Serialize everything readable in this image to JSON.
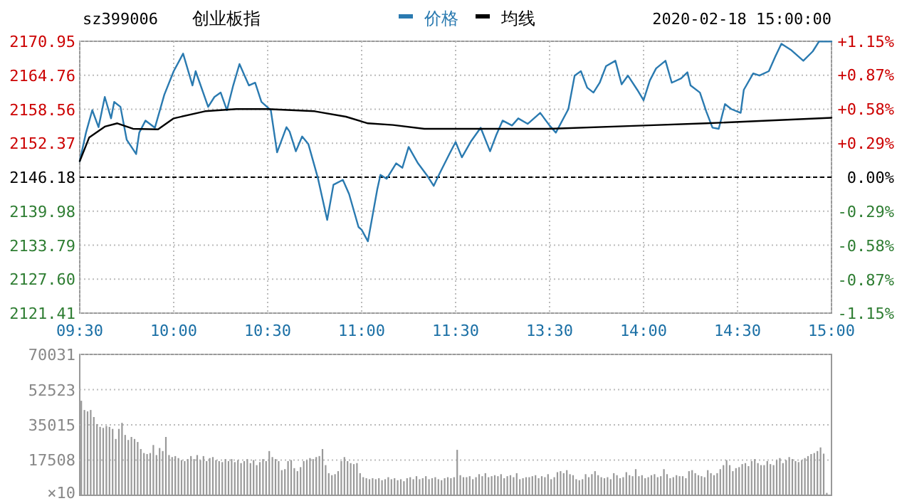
{
  "chart_data": [
    {
      "type": "line",
      "title": "创业板指",
      "subtitle": "sz399006",
      "annotations": [
        "2020-02-18 15:00:00"
      ],
      "legend": "top",
      "grid": true,
      "categories": [
        "09:30",
        null,
        null,
        null,
        null,
        null,
        null,
        null,
        null,
        null,
        null,
        null,
        null,
        null,
        null,
        null,
        null,
        null,
        null,
        null,
        null,
        null,
        null,
        null,
        null,
        null,
        null,
        null,
        null,
        null,
        "10:00",
        null,
        null,
        null,
        null,
        null,
        null,
        null,
        null,
        null,
        null,
        null,
        null,
        null,
        null,
        null,
        null,
        null,
        null,
        null,
        null,
        null,
        null,
        null,
        null,
        null,
        null,
        null,
        null,
        null,
        "10:30",
        null,
        null,
        null,
        null,
        null,
        null,
        null,
        null,
        null,
        null,
        null,
        null,
        null,
        null,
        null,
        null,
        null,
        null,
        null,
        null,
        null,
        null,
        null,
        null,
        null,
        null,
        null,
        null,
        null,
        "11:00",
        null,
        null,
        null,
        null,
        null,
        null,
        null,
        null,
        null,
        null,
        null,
        null,
        null,
        null,
        null,
        null,
        null,
        null,
        null,
        null,
        null,
        null,
        null,
        null,
        null,
        null,
        null,
        null,
        null,
        "11:30",
        null,
        null,
        null,
        null,
        null,
        null,
        null,
        null,
        null,
        null,
        null,
        null,
        null,
        null,
        null,
        null,
        null,
        null,
        null,
        null,
        null,
        null,
        null,
        null,
        null,
        null,
        null,
        null,
        null,
        "13:30",
        null,
        null,
        null,
        null,
        null,
        null,
        null,
        null,
        null,
        null,
        null,
        null,
        null,
        null,
        null,
        null,
        null,
        null,
        null,
        null,
        null,
        null,
        null,
        null,
        null,
        null,
        null,
        null,
        null,
        "14:00",
        null,
        null,
        null,
        null,
        null,
        null,
        null,
        null,
        null,
        null,
        null,
        null,
        null,
        null,
        null,
        null,
        null,
        null,
        null,
        null,
        null,
        null,
        null,
        null,
        null,
        null,
        null,
        null,
        null,
        "14:30",
        null,
        null,
        null,
        null,
        null,
        null,
        null,
        null,
        null,
        null,
        null,
        null,
        null,
        null,
        null,
        null,
        null,
        null,
        null,
        null,
        null,
        null,
        null,
        null,
        null,
        null,
        null,
        null,
        null,
        "15:00"
      ],
      "ylim": [
        2121.41,
        2170.95
      ],
      "yticks": [
        2121.41,
        {
          "value": 2127.6,
          "label": "2127.60"
        },
        2133.79,
        2139.98,
        2146.18,
        2152.37,
        2158.56,
        2164.76,
        2170.95
      ],
      "y2lim": [
        -1.15,
        1.15
      ],
      "y2ticks": [
        {
          "value": -1.15,
          "label": "-1.15%"
        },
        {
          "value": -0.87,
          "label": "-0.87%"
        },
        {
          "value": -0.58,
          "label": "-0.58%"
        },
        {
          "value": -0.29,
          "label": "-0.29%"
        },
        {
          "value": 0,
          "label": "0.00%"
        },
        {
          "value": 0.29,
          "label": "+0.29%"
        },
        {
          "value": 0.58,
          "label": "+0.58%"
        },
        {
          "value": 0.87,
          "label": "+0.87%"
        },
        {
          "value": 1.15,
          "label": "+1.15%"
        }
      ],
      "ref_lines": [
        {
          "axis": "y",
          "value": 2146.18,
          "color": "#000000",
          "line_style": "dashed"
        }
      ],
      "series": [
        {
          "name": "价格",
          "color": "#2a7ab0",
          "values": [
            2149.1,
            null,
            2154.3,
            null,
            2158.4,
            null,
            2155.3,
            null,
            2160.8,
            null,
            2156.9,
            2159.9,
            null,
            2159.0,
            null,
            2153.0,
            null,
            null,
            2150.4,
            2154.3,
            null,
            2156.5,
            null,
            null,
            2155.2,
            null,
            null,
            2161.2,
            null,
            null,
            2165.5,
            null,
            null,
            2168.7,
            null,
            null,
            2162.9,
            2165.5,
            null,
            null,
            null,
            2159.0,
            null,
            2160.8,
            null,
            2161.6,
            null,
            2158.4,
            null,
            2162.9,
            null,
            2166.8,
            null,
            null,
            2162.9,
            null,
            2163.4,
            null,
            2159.9,
            null,
            null,
            2158.4,
            null,
            2150.7,
            null,
            null,
            2155.3,
            2154.5,
            null,
            2150.9,
            null,
            2153.6,
            null,
            2152.2,
            null,
            null,
            2146.1,
            null,
            null,
            2138.4,
            null,
            2144.8,
            null,
            null,
            2145.7,
            null,
            2143.1,
            null,
            null,
            2137.1,
            2136.6,
            null,
            2134.5,
            null,
            null,
            2144.0,
            2146.6,
            null,
            2145.9,
            null,
            null,
            2148.7,
            null,
            2147.9,
            null,
            2151.7,
            null,
            null,
            2148.7,
            null,
            null,
            2146.4,
            null,
            2144.6,
            null,
            2147.0,
            null,
            null,
            2150.4,
            null,
            2152.6,
            null,
            2149.8,
            null,
            null,
            2152.8,
            null,
            null,
            2155.2,
            null,
            null,
            2150.9,
            null,
            2153.9,
            null,
            2156.5,
            null,
            null,
            2155.6,
            null,
            2156.9,
            null,
            null,
            2155.9,
            null,
            null,
            null,
            2157.9,
            null,
            null,
            2155.6,
            null,
            2154.3,
            null,
            null,
            null,
            2158.6,
            null,
            2164.7,
            null,
            2165.5,
            null,
            2162.5,
            null,
            2161.6,
            null,
            2163.4,
            null,
            2166.4,
            null,
            null,
            2167.4,
            null,
            2163.1,
            null,
            2164.7,
            null,
            null,
            2162.1,
            null,
            2160.2,
            null,
            2163.8,
            null,
            2166.0,
            null,
            null,
            2167.4,
            null,
            2163.4,
            null,
            null,
            2164.2,
            null,
            2165.3,
            2162.9,
            null,
            null,
            2161.6,
            null,
            2158.2,
            null,
            2155.2,
            null,
            2155.0,
            null,
            2159.5,
            null,
            2158.6,
            null,
            null,
            2157.9,
            2162.1,
            null,
            null,
            2165.1,
            null,
            2164.7,
            null,
            null,
            2165.5,
            null,
            2168.1,
            null,
            2170.5,
            null,
            null,
            2169.4,
            null,
            null,
            null,
            2167.4,
            null,
            null,
            2169.1,
            null,
            2170.9,
            null,
            null,
            null,
            2170.9
          ]
        },
        {
          "name": "均线",
          "color": "#000000",
          "values": [
            2149.1,
            null,
            null,
            2153.4,
            null,
            null,
            null,
            null,
            2155.4,
            null,
            null,
            null,
            2156.0,
            null,
            null,
            null,
            null,
            2155.0,
            null,
            null,
            null,
            null,
            null,
            null,
            null,
            2154.9,
            null,
            null,
            null,
            null,
            2156.9,
            null,
            null,
            null,
            null,
            null,
            null,
            null,
            null,
            null,
            2158.2,
            null,
            null,
            null,
            null,
            null,
            null,
            null,
            null,
            null,
            2158.6,
            null,
            null,
            null,
            null,
            null,
            null,
            null,
            null,
            null,
            2158.6,
            null,
            null,
            null,
            null,
            null,
            null,
            null,
            null,
            null,
            null,
            null,
            null,
            null,
            null,
            2158.2,
            null,
            null,
            null,
            null,
            null,
            null,
            null,
            null,
            null,
            2157.2,
            null,
            null,
            null,
            null,
            null,
            null,
            2156.0,
            null,
            null,
            null,
            null,
            null,
            null,
            null,
            2155.7,
            null,
            null,
            null,
            null,
            null,
            null,
            null,
            null,
            null,
            2155.0,
            null,
            null,
            null,
            null,
            null,
            null,
            null,
            null,
            null,
            2155.0,
            null,
            null,
            null,
            null,
            null,
            null,
            null,
            null,
            null,
            null,
            null,
            null,
            null,
            null,
            null,
            null,
            null,
            null,
            null,
            null,
            null,
            null,
            null,
            null,
            null,
            null,
            null,
            null,
            null,
            2155.0,
            null,
            null,
            null,
            null,
            null,
            null,
            null,
            null,
            null,
            null,
            null,
            null,
            null,
            null,
            null,
            null,
            null,
            null,
            null,
            null,
            null,
            null,
            null,
            null,
            null,
            null,
            null,
            null,
            null,
            2155.6,
            null,
            null,
            null,
            null,
            null,
            null,
            null,
            null,
            null,
            null,
            null,
            null,
            null,
            null,
            null,
            null,
            null,
            null,
            null,
            2156.0,
            null,
            null,
            null,
            null,
            null,
            null,
            null,
            null,
            null,
            null,
            null,
            null,
            null,
            null,
            null,
            null,
            null,
            null,
            null,
            null,
            null,
            null,
            null,
            null,
            null,
            null,
            null,
            null,
            null,
            null,
            null,
            null,
            null,
            null,
            null,
            null,
            null,
            null,
            null,
            2157.0
          ]
        }
      ]
    },
    {
      "type": "bar",
      "tick_labels": "y",
      "grid": "y",
      "color": "#999999",
      "ylabel": "×10",
      "categories": [
        null,
        null,
        null,
        null,
        null,
        null,
        null,
        null,
        null,
        null,
        null,
        null,
        null,
        null,
        null,
        null,
        null,
        null,
        null,
        null,
        null,
        null,
        null,
        null,
        null,
        null,
        null,
        null,
        null,
        null,
        null,
        null,
        null,
        null,
        null,
        null,
        null,
        null,
        null,
        null,
        null,
        null,
        null,
        null,
        null,
        null,
        null,
        null,
        null,
        null,
        null,
        null,
        null,
        null,
        null,
        null,
        null,
        null,
        null,
        null,
        null,
        null,
        null,
        null,
        null,
        null,
        null,
        null,
        null,
        null,
        null,
        null,
        null,
        null,
        null,
        null,
        null,
        null,
        null,
        null,
        null,
        null,
        null,
        null,
        null,
        null,
        null,
        null,
        null,
        null,
        null,
        null,
        null,
        null,
        null,
        null,
        null,
        null,
        null,
        null,
        null,
        null,
        null,
        null,
        null,
        null,
        null,
        null,
        null,
        null,
        null,
        null,
        null,
        null,
        null,
        null,
        null,
        null,
        null,
        null,
        null,
        null,
        null,
        null,
        null,
        null,
        null,
        null,
        null,
        null,
        null,
        null,
        null,
        null,
        null,
        null,
        null,
        null,
        null,
        null,
        null,
        null,
        null,
        null,
        null,
        null,
        null,
        null,
        null,
        null,
        null,
        null,
        null,
        null,
        null,
        null,
        null,
        null,
        null,
        null,
        null,
        null,
        null,
        null,
        null,
        null,
        null,
        null,
        null,
        null,
        null,
        null,
        null,
        null,
        null,
        null,
        null,
        null,
        null,
        null,
        null,
        null,
        null,
        null,
        null,
        null,
        null,
        null,
        null,
        null,
        null,
        null,
        null,
        null,
        null,
        null,
        null,
        null,
        null,
        null,
        null,
        null,
        null,
        null,
        null,
        null,
        null,
        null,
        null,
        null,
        null,
        null,
        null,
        null,
        null,
        null,
        null,
        null,
        null,
        null,
        null,
        null,
        null,
        null,
        null,
        null,
        null,
        null,
        null,
        null,
        null,
        null,
        null,
        null,
        null,
        null,
        null,
        null,
        null,
        null
      ],
      "ylim": [
        0,
        70031
      ],
      "yticks": [
        17508,
        35015,
        52523,
        70031
      ],
      "values": [
        47000,
        42400,
        41700,
        42400,
        38900,
        35400,
        34000,
        33500,
        34500,
        34000,
        33000,
        28000,
        33000,
        36000,
        30000,
        27500,
        29000,
        28000,
        26500,
        23000,
        21000,
        20500,
        21000,
        25000,
        20000,
        23500,
        22000,
        29000,
        20000,
        19000,
        19500,
        18500,
        17500,
        17000,
        18000,
        19500,
        18000,
        20000,
        17500,
        19500,
        17000,
        18500,
        19000,
        17500,
        17000,
        16500,
        18000,
        17000,
        18000,
        16500,
        17500,
        16000,
        17000,
        18000,
        16000,
        17500,
        15000,
        16500,
        18000,
        17000,
        22000,
        19000,
        18000,
        17000,
        12500,
        13000,
        17000,
        17500,
        13500,
        12000,
        14000,
        17000,
        17500,
        18500,
        18000,
        19000,
        19500,
        23000,
        15000,
        11000,
        10000,
        10500,
        12000,
        17000,
        19000,
        17000,
        16000,
        15500,
        16000,
        11000,
        9000,
        8500,
        8000,
        8500,
        8000,
        8500,
        7500,
        8000,
        9000,
        8000,
        8500,
        7500,
        8000,
        7000,
        8500,
        9000,
        8000,
        9500,
        8000,
        8500,
        9500,
        8000,
        8500,
        9000,
        8000,
        7500,
        8500,
        9000,
        8500,
        9000,
        22600,
        10000,
        9000,
        9000,
        9500,
        8000,
        9000,
        10500,
        9500,
        11000,
        9000,
        9500,
        10000,
        9500,
        10500,
        8500,
        9500,
        10000,
        9000,
        11000,
        8000,
        8500,
        9000,
        9000,
        9500,
        10000,
        8500,
        9500,
        9000,
        10500,
        8000,
        9000,
        11500,
        12000,
        11000,
        12500,
        10500,
        10000,
        8000,
        7500,
        8000,
        10500,
        9000,
        10500,
        12000,
        10000,
        9000,
        8500,
        9000,
        8000,
        11000,
        10000,
        8500,
        9000,
        11500,
        10000,
        9500,
        13000,
        9500,
        10000,
        8500,
        9000,
        10000,
        10500,
        9000,
        9500,
        13000,
        10500,
        8500,
        9000,
        10000,
        9500,
        9500,
        8500,
        12000,
        12500,
        11000,
        10000,
        9500,
        9000,
        12500,
        11000,
        10000,
        11000,
        13000,
        15000,
        17500,
        15000,
        12000,
        13500,
        14000,
        15500,
        16000,
        14500,
        17000,
        18000,
        16000,
        15000,
        15000,
        17000,
        15500,
        15000,
        17500,
        18500,
        16000,
        17500,
        19000,
        18000,
        17000,
        16500,
        17500,
        18500,
        19500,
        20500,
        21000,
        22000,
        23800,
        20700,
        1200,
        null
      ]
    }
  ]
}
